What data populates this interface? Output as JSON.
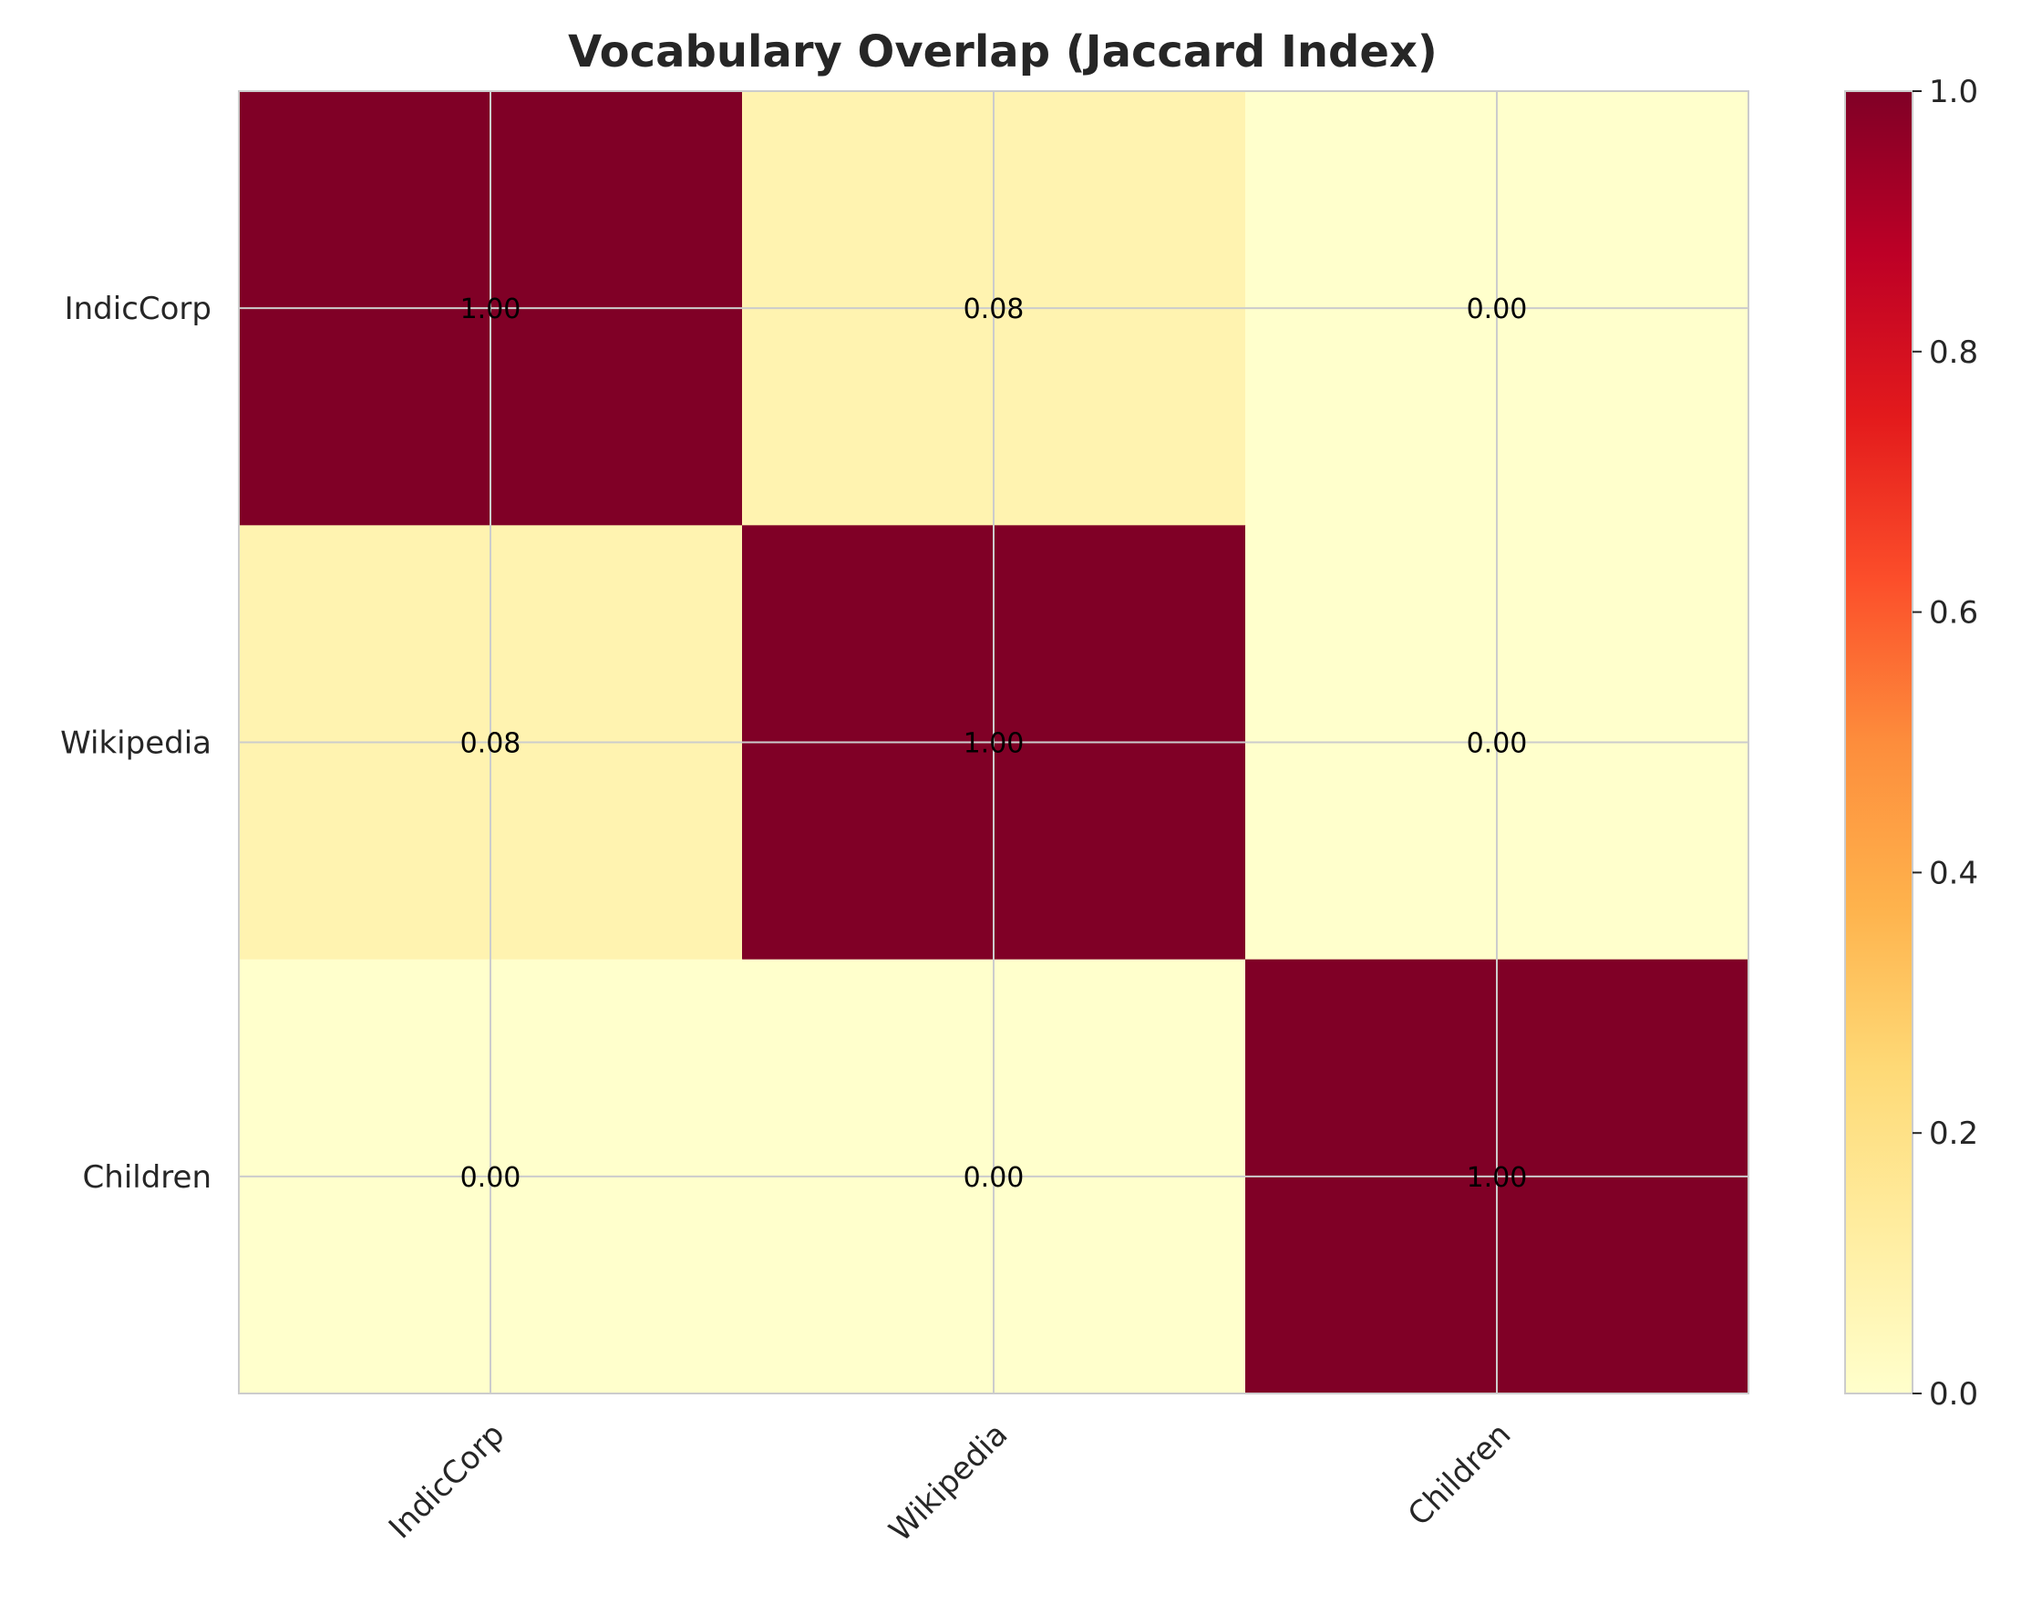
{
  "chart_data": {
    "type": "heatmap",
    "title": "Vocabulary Overlap (Jaccard Index)",
    "xlabel": "",
    "ylabel": "",
    "x_categories": [
      "IndicCorp",
      "Wikipedia",
      "Children"
    ],
    "y_categories": [
      "IndicCorp",
      "Wikipedia",
      "Children"
    ],
    "values": [
      [
        1.0,
        0.08,
        0.0
      ],
      [
        0.08,
        1.0,
        0.0
      ],
      [
        0.0,
        0.0,
        1.0
      ]
    ],
    "value_labels": [
      [
        "1.00",
        "0.08",
        "0.00"
      ],
      [
        "0.08",
        "1.00",
        "0.00"
      ],
      [
        "0.00",
        "0.00",
        "1.00"
      ]
    ],
    "colorbar": {
      "range": [
        0.0,
        1.0
      ],
      "ticks": [
        "0.0",
        "0.2",
        "0.4",
        "0.6",
        "0.8",
        "1.0"
      ],
      "colormap": "YlOrRd"
    },
    "grid": true,
    "colors": {
      "max": "#800026",
      "min": "#ffffcc"
    }
  }
}
